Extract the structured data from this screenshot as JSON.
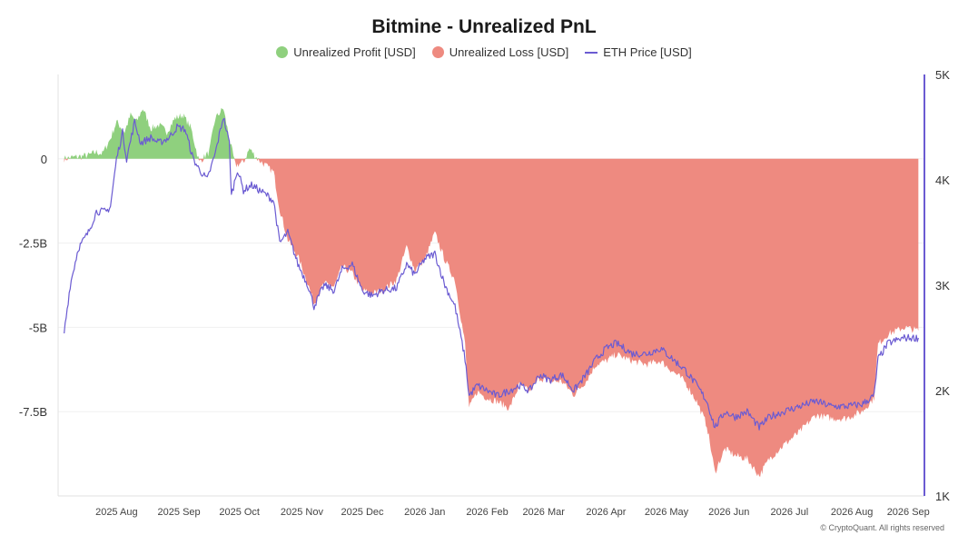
{
  "chart_data": {
    "type": "area",
    "title": "Bitmine - Unrealized PnL",
    "x_ticks": [
      "2025 Aug",
      "2025 Sep",
      "2025 Oct",
      "2025 Nov",
      "2025 Dec",
      "2026 Jan",
      "2026 Feb",
      "2026 Mar",
      "2026 Apr",
      "2026 May",
      "2026 Jun",
      "2026 Jul",
      "2026 Aug",
      "2026 Sep"
    ],
    "y_left": {
      "ticks": [
        "0",
        "-2.5B",
        "-5B",
        "-7.5B"
      ],
      "range_billions": [
        -10.0,
        2.5
      ]
    },
    "y_right": {
      "ticks": [
        "5K",
        "4K",
        "3K",
        "2K",
        "1K"
      ],
      "range": [
        1000,
        5000
      ]
    },
    "series": [
      {
        "name": "Unrealized Profit [USD]",
        "color": "#8fd07e"
      },
      {
        "name": "Unrealized Loss [USD]",
        "color": "#ee8a80"
      },
      {
        "name": "ETH Price [USD]",
        "color": "#6b5bd2"
      }
    ],
    "pnl_billions": [
      [
        "2025-07-20",
        0.0
      ],
      [
        "2025-07-25",
        0.05
      ],
      [
        "2025-08-01",
        0.1
      ],
      [
        "2025-08-05",
        0.2
      ],
      [
        "2025-08-08",
        0.15
      ],
      [
        "2025-08-12",
        0.6
      ],
      [
        "2025-08-15",
        1.1
      ],
      [
        "2025-08-19",
        0.8
      ],
      [
        "2025-08-22",
        1.3
      ],
      [
        "2025-08-25",
        1.1
      ],
      [
        "2025-08-28",
        1.5
      ],
      [
        "2025-09-01",
        0.9
      ],
      [
        "2025-09-05",
        1.0
      ],
      [
        "2025-09-09",
        0.8
      ],
      [
        "2025-09-13",
        1.2
      ],
      [
        "2025-09-17",
        1.3
      ],
      [
        "2025-09-21",
        0.9
      ],
      [
        "2025-09-25",
        -0.1
      ],
      [
        "2025-09-30",
        0.2
      ],
      [
        "2025-10-03",
        1.2
      ],
      [
        "2025-10-07",
        1.5
      ],
      [
        "2025-10-10",
        0.6
      ],
      [
        "2025-10-13",
        -0.2
      ],
      [
        "2025-10-17",
        -0.1
      ],
      [
        "2025-10-20",
        0.3
      ],
      [
        "2025-10-24",
        0.0
      ],
      [
        "2025-10-28",
        -0.2
      ],
      [
        "2025-11-01",
        -0.4
      ],
      [
        "2025-11-04",
        -1.5
      ],
      [
        "2025-11-08",
        -2.4
      ],
      [
        "2025-11-13",
        -2.9
      ],
      [
        "2025-11-18",
        -3.7
      ],
      [
        "2025-11-21",
        -4.3
      ],
      [
        "2025-11-26",
        -3.7
      ],
      [
        "2025-12-01",
        -3.8
      ],
      [
        "2025-12-05",
        -3.2
      ],
      [
        "2025-12-10",
        -3.4
      ],
      [
        "2025-12-15",
        -3.9
      ],
      [
        "2025-12-20",
        -4.0
      ],
      [
        "2025-12-25",
        -3.9
      ],
      [
        "2026-01-01",
        -3.6
      ],
      [
        "2026-01-06",
        -2.6
      ],
      [
        "2026-01-10",
        -3.3
      ],
      [
        "2026-01-15",
        -3.0
      ],
      [
        "2026-01-20",
        -2.2
      ],
      [
        "2026-01-25",
        -3.0
      ],
      [
        "2026-01-30",
        -3.6
      ],
      [
        "2026-02-04",
        -5.5
      ],
      [
        "2026-02-06",
        -7.4
      ],
      [
        "2026-02-10",
        -6.9
      ],
      [
        "2026-02-15",
        -7.1
      ],
      [
        "2026-02-20",
        -7.2
      ],
      [
        "2026-02-26",
        -7.4
      ],
      [
        "2026-03-03",
        -6.7
      ],
      [
        "2026-03-08",
        -6.9
      ],
      [
        "2026-03-13",
        -6.5
      ],
      [
        "2026-03-18",
        -6.6
      ],
      [
        "2026-03-24",
        -6.6
      ],
      [
        "2026-03-30",
        -7.0
      ],
      [
        "2026-04-05",
        -6.6
      ],
      [
        "2026-04-10",
        -6.1
      ],
      [
        "2026-04-15",
        -6.0
      ],
      [
        "2026-04-20",
        -5.8
      ],
      [
        "2026-04-28",
        -6.0
      ],
      [
        "2026-05-05",
        -6.1
      ],
      [
        "2026-05-12",
        -6.0
      ],
      [
        "2026-05-18",
        -6.3
      ],
      [
        "2026-05-24",
        -6.6
      ],
      [
        "2026-05-30",
        -7.2
      ],
      [
        "2026-06-04",
        -7.9
      ],
      [
        "2026-06-08",
        -9.3
      ],
      [
        "2026-06-13",
        -8.6
      ],
      [
        "2026-06-18",
        -8.8
      ],
      [
        "2026-06-24",
        -8.9
      ],
      [
        "2026-06-30",
        -9.4
      ],
      [
        "2026-07-05",
        -8.9
      ],
      [
        "2026-07-12",
        -8.5
      ],
      [
        "2026-07-20",
        -8.1
      ],
      [
        "2026-07-28",
        -7.6
      ],
      [
        "2026-08-05",
        -7.7
      ],
      [
        "2026-08-12",
        -7.7
      ],
      [
        "2026-08-20",
        -7.5
      ],
      [
        "2026-08-26",
        -7.1
      ],
      [
        "2026-08-28",
        -5.5
      ],
      [
        "2026-09-02",
        -5.2
      ],
      [
        "2026-09-10",
        -5.0
      ],
      [
        "2026-09-17",
        -5.1
      ]
    ],
    "eth_price": [
      [
        "2025-07-20",
        2550
      ],
      [
        "2025-07-23",
        3000
      ],
      [
        "2025-07-27",
        3350
      ],
      [
        "2025-08-01",
        3500
      ],
      [
        "2025-08-05",
        3700
      ],
      [
        "2025-08-10",
        3700
      ],
      [
        "2025-08-12",
        3750
      ],
      [
        "2025-08-15",
        4200
      ],
      [
        "2025-08-18",
        4450
      ],
      [
        "2025-08-20",
        4200
      ],
      [
        "2025-08-24",
        4550
      ],
      [
        "2025-08-27",
        4350
      ],
      [
        "2025-09-01",
        4400
      ],
      [
        "2025-09-05",
        4350
      ],
      [
        "2025-09-10",
        4400
      ],
      [
        "2025-09-14",
        4500
      ],
      [
        "2025-09-18",
        4480
      ],
      [
        "2025-09-22",
        4200
      ],
      [
        "2025-09-25",
        4100
      ],
      [
        "2025-09-29",
        4000
      ],
      [
        "2025-10-03",
        4250
      ],
      [
        "2025-10-07",
        4600
      ],
      [
        "2025-10-10",
        4350
      ],
      [
        "2025-10-11",
        3850
      ],
      [
        "2025-10-14",
        4100
      ],
      [
        "2025-10-17",
        3900
      ],
      [
        "2025-10-21",
        3950
      ],
      [
        "2025-10-25",
        3900
      ],
      [
        "2025-10-29",
        3850
      ],
      [
        "2025-11-01",
        3800
      ],
      [
        "2025-11-04",
        3400
      ],
      [
        "2025-11-08",
        3500
      ],
      [
        "2025-11-13",
        3200
      ],
      [
        "2025-11-18",
        3000
      ],
      [
        "2025-11-21",
        2800
      ],
      [
        "2025-11-26",
        3000
      ],
      [
        "2025-12-01",
        2950
      ],
      [
        "2025-12-05",
        3150
      ],
      [
        "2025-12-10",
        3200
      ],
      [
        "2025-12-15",
        2950
      ],
      [
        "2025-12-20",
        2900
      ],
      [
        "2025-12-25",
        2950
      ],
      [
        "2026-01-01",
        2970
      ],
      [
        "2026-01-06",
        3200
      ],
      [
        "2026-01-10",
        3100
      ],
      [
        "2026-01-15",
        3250
      ],
      [
        "2026-01-20",
        3300
      ],
      [
        "2026-01-25",
        3000
      ],
      [
        "2026-01-30",
        2800
      ],
      [
        "2026-02-04",
        2300
      ],
      [
        "2026-02-06",
        1950
      ],
      [
        "2026-02-10",
        2050
      ],
      [
        "2026-02-15",
        2000
      ],
      [
        "2026-02-20",
        1950
      ],
      [
        "2026-02-26",
        2000
      ],
      [
        "2026-03-03",
        2050
      ],
      [
        "2026-03-08",
        2000
      ],
      [
        "2026-03-13",
        2150
      ],
      [
        "2026-03-18",
        2100
      ],
      [
        "2026-03-24",
        2150
      ],
      [
        "2026-03-30",
        2000
      ],
      [
        "2026-04-05",
        2150
      ],
      [
        "2026-04-10",
        2300
      ],
      [
        "2026-04-15",
        2400
      ],
      [
        "2026-04-20",
        2450
      ],
      [
        "2026-04-28",
        2350
      ],
      [
        "2026-05-05",
        2350
      ],
      [
        "2026-05-12",
        2400
      ],
      [
        "2026-05-18",
        2300
      ],
      [
        "2026-05-24",
        2200
      ],
      [
        "2026-05-30",
        2050
      ],
      [
        "2026-06-04",
        1900
      ],
      [
        "2026-06-08",
        1650
      ],
      [
        "2026-06-13",
        1800
      ],
      [
        "2026-06-18",
        1750
      ],
      [
        "2026-06-24",
        1800
      ],
      [
        "2026-06-30",
        1650
      ],
      [
        "2026-07-05",
        1750
      ],
      [
        "2026-07-12",
        1800
      ],
      [
        "2026-07-20",
        1850
      ],
      [
        "2026-07-28",
        1900
      ],
      [
        "2026-08-05",
        1850
      ],
      [
        "2026-08-12",
        1850
      ],
      [
        "2026-08-20",
        1870
      ],
      [
        "2026-08-26",
        1950
      ],
      [
        "2026-08-28",
        2300
      ],
      [
        "2026-09-02",
        2450
      ],
      [
        "2026-09-10",
        2500
      ],
      [
        "2026-09-17",
        2500
      ]
    ]
  },
  "footer": "© CryptoQuant. All rights reserved"
}
